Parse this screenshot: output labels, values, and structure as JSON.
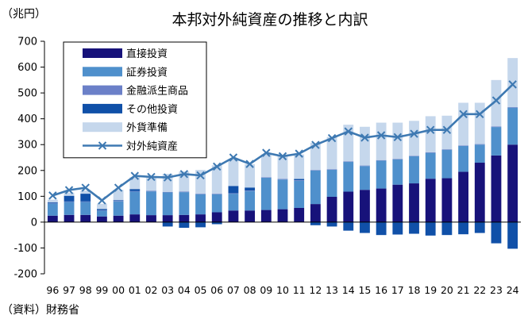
{
  "chart_data": {
    "type": "bar",
    "title": "本邦対外純資産の推移と内訳",
    "ylabel": "（兆円）",
    "source": "（資料）財務省",
    "ylim": [
      -200,
      700
    ],
    "yticks": [
      -200,
      -100,
      0,
      100,
      200,
      300,
      400,
      500,
      600,
      700
    ],
    "grid": false,
    "legend_position": "top-left",
    "categories": [
      "96",
      "97",
      "98",
      "99",
      "00",
      "01",
      "02",
      "03",
      "04",
      "05",
      "06",
      "07",
      "08",
      "09",
      "10",
      "11",
      "12",
      "13",
      "14",
      "15",
      "16",
      "17",
      "18",
      "19",
      "20",
      "21",
      "22",
      "23",
      "24"
    ],
    "series": [
      {
        "name": "直接投資",
        "type": "bar",
        "color": "#17127a",
        "values": [
          25,
          28,
          28,
          22,
          25,
          30,
          27,
          27,
          28,
          30,
          38,
          45,
          45,
          47,
          50,
          55,
          70,
          98,
          118,
          125,
          130,
          145,
          150,
          168,
          170,
          195,
          230,
          258,
          300
        ]
      },
      {
        "name": "証券投資",
        "type": "bar",
        "color": "#4f90cc",
        "values": [
          47,
          50,
          50,
          22,
          55,
          88,
          92,
          88,
          88,
          78,
          70,
          65,
          75,
          125,
          115,
          105,
          130,
          105,
          115,
          92,
          108,
          98,
          105,
          100,
          110,
          100,
          70,
          110,
          143
        ]
      },
      {
        "name": "金融派生商品",
        "type": "bar",
        "color": "#6b80c8",
        "values": [
          2,
          2,
          2,
          2,
          2,
          2,
          2,
          2,
          2,
          2,
          2,
          2,
          2,
          2,
          2,
          2,
          2,
          2,
          2,
          2,
          2,
          2,
          2,
          2,
          2,
          2,
          2,
          2,
          2
        ]
      },
      {
        "name": "その他投資",
        "type": "bar",
        "color": "#1050a8",
        "values": [
          3,
          22,
          30,
          5,
          3,
          8,
          0,
          -17,
          -22,
          -20,
          -8,
          28,
          12,
          0,
          0,
          5,
          -12,
          -17,
          -33,
          -42,
          -50,
          -48,
          -45,
          -52,
          -50,
          -47,
          -42,
          -82,
          -103
        ]
      },
      {
        "name": "外貨準備",
        "type": "bar",
        "color": "#c5d7ec",
        "values": [
          10,
          12,
          12,
          20,
          40,
          45,
          50,
          70,
          78,
          92,
          110,
          105,
          90,
          88,
          88,
          95,
          105,
          125,
          142,
          150,
          145,
          140,
          135,
          140,
          130,
          165,
          160,
          180,
          190
        ]
      },
      {
        "name": "対外純資産",
        "type": "line",
        "color": "#3e79b2",
        "values": [
          103,
          124,
          133,
          84,
          133,
          179,
          175,
          173,
          186,
          181,
          215,
          250,
          225,
          268,
          255,
          265,
          299,
          325,
          351,
          327,
          336,
          329,
          342,
          357,
          357,
          418,
          418,
          471,
          533
        ]
      }
    ]
  }
}
